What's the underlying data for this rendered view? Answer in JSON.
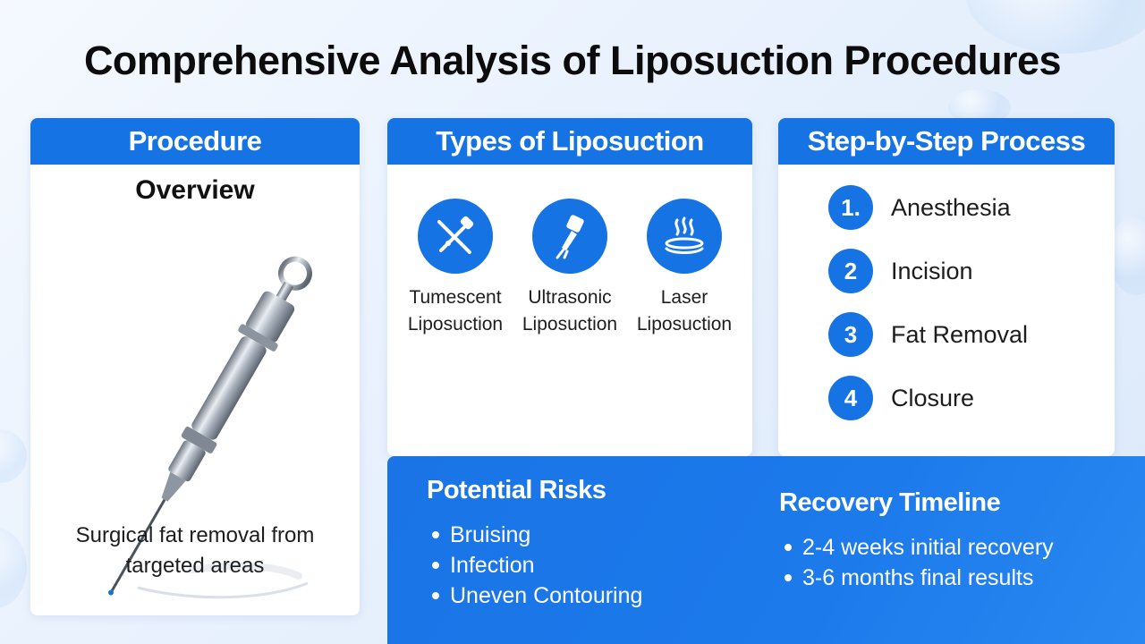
{
  "title": "Comprehensive Analysis of Liposuction Procedures",
  "overview": {
    "header": "Procedure",
    "subheading": "Overview",
    "illustration": "liposuction-cannula-icon",
    "description": "Surgical fat removal from targeted areas"
  },
  "types": {
    "header": "Types of Liposuction",
    "items": [
      {
        "label": "Tumescent\nLiposuction",
        "icon": "syringe-cross-icon"
      },
      {
        "label": "Ultrasonic\nLiposuction",
        "icon": "ultrasonic-probe-icon"
      },
      {
        "label": "Laser\nLiposuction",
        "icon": "laser-heat-icon"
      }
    ]
  },
  "steps": {
    "header": "Step-by-Step Process",
    "items": [
      {
        "num": "1.",
        "label": "Anesthesia"
      },
      {
        "num": "2",
        "label": "Incision"
      },
      {
        "num": "3",
        "label": "Fat Removal"
      },
      {
        "num": "4",
        "label": "Closure"
      }
    ]
  },
  "risks": {
    "header": "Potential Risks",
    "items": [
      "Bruising",
      "Infection",
      "Uneven Contouring"
    ]
  },
  "recovery": {
    "header": "Recovery Timeline",
    "items": [
      "2-4 weeks initial recovery",
      "3-6 months final results"
    ]
  },
  "colors": {
    "accent": "#1673e3",
    "background": "#e8f1fd"
  }
}
